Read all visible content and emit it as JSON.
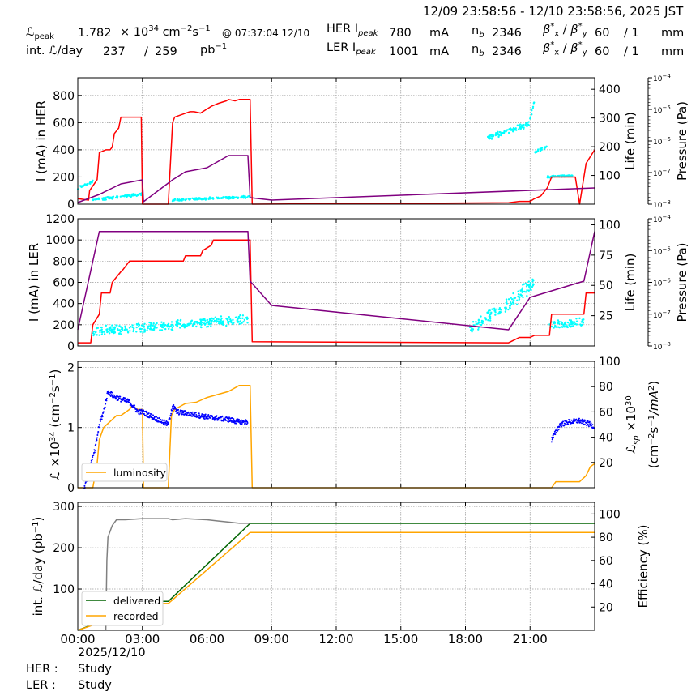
{
  "header": {
    "time_range": "12/09 23:58:56 - 12/10 23:58:56, 2025 JST",
    "lpeak_label": "ℒ",
    "lpeak_sub": "peak",
    "lpeak_value": "1.782",
    "lpeak_times": "× 10",
    "lpeak_exp": "34",
    "lpeak_unit_a": "cm",
    "lpeak_unit_e1": "−2",
    "lpeak_unit_b": "s",
    "lpeak_unit_e2": "−1",
    "lpeak_at": "@ 07:37:04 12/10",
    "intl_label": "int. ℒ/day",
    "intl_rec": "237",
    "intl_slash": "/",
    "intl_del": "259",
    "intl_unit": "pb",
    "intl_unit_exp": "−1",
    "her": {
      "label": "HER I",
      "sub": "peak",
      "value": "780",
      "unit": "mA",
      "nb_label": "n",
      "nb_sub": "b",
      "nb": "2346",
      "beta_label": "β",
      "beta_x": "x",
      "beta_y": "y",
      "beta_star": "*",
      "beta_x_val": "60",
      "beta_y_val": "/ 1",
      "beta_unit": "mm"
    },
    "ler": {
      "label": "LER I",
      "sub": "peak",
      "value": "1001",
      "unit": "mA",
      "nb_label": "n",
      "nb_sub": "b",
      "nb": "2346",
      "beta_label": "β",
      "beta_x": "x",
      "beta_y": "y",
      "beta_star": "*",
      "beta_x_val": "60",
      "beta_y_val": "/ 1",
      "beta_unit": "mm"
    }
  },
  "footer": {
    "date": "2025/12/10",
    "her_label": "HER :",
    "her_mode": "Study",
    "ler_label": "LER :",
    "ler_mode": "Study"
  },
  "colors": {
    "current": "#ff0000",
    "life": "#00ffff",
    "pressure": "#800080",
    "lumi": "#ffa500",
    "lsp": "#0000ff",
    "delivered": "#006400",
    "recorded": "#ffa500",
    "efficiency": "#808080"
  },
  "chart_data": [
    {
      "type": "line",
      "ylabel": "I (mA) in HER",
      "ylim": [
        0,
        930
      ],
      "yticks": [
        0,
        200,
        400,
        600,
        800
      ],
      "y2label": "Life (min)",
      "y2lim": [
        0,
        440
      ],
      "y2ticks": [
        100,
        200,
        300,
        400
      ],
      "y3label": "Pressure (Pa)",
      "y3scale": "log",
      "y3ticks": [
        "10",
        "10",
        "10",
        "10",
        "10"
      ],
      "y3ticks_exp": [
        "−4",
        "−5",
        "−6",
        "−7",
        "−8"
      ],
      "xlim": [
        0,
        24
      ],
      "series": [
        {
          "role": "current",
          "x": [
            0,
            0.5,
            0.55,
            0.9,
            1.0,
            1.3,
            1.4,
            1.5,
            1.6,
            1.7,
            1.9,
            2.0,
            2.3,
            2.4,
            2.95,
            3.0,
            3.05,
            4.2,
            4.4,
            4.5,
            5.2,
            5.4,
            5.7,
            6.0,
            6.2,
            6.5,
            6.9,
            7.0,
            7.3,
            7.5,
            7.9,
            8.0,
            8.1,
            20.0,
            20.5,
            21.0,
            21.2,
            21.5,
            21.8,
            22.0,
            22.3,
            23.1,
            23.3,
            23.6,
            24.0
          ],
          "y": [
            40,
            30,
            100,
            180,
            380,
            400,
            400,
            400,
            420,
            520,
            560,
            640,
            640,
            640,
            640,
            0,
            0,
            0,
            600,
            640,
            680,
            680,
            670,
            700,
            720,
            740,
            760,
            770,
            760,
            770,
            770,
            770,
            0,
            10,
            20,
            20,
            40,
            60,
            120,
            200,
            200,
            200,
            0,
            300,
            400
          ]
        },
        {
          "role": "pressure",
          "x": [
            0,
            1.0,
            2.0,
            3.0,
            3.05,
            4.4,
            5.0,
            6.0,
            7.0,
            7.9,
            8.0,
            9.0,
            24.0
          ],
          "y": [
            2,
            12,
            25,
            30,
            3,
            30,
            40,
            45,
            60,
            60,
            8,
            5,
            20
          ]
        }
      ],
      "life_clusters": [
        {
          "x": [
            0,
            0.7
          ],
          "y": [
            55,
            80
          ]
        },
        {
          "x": [
            0.7,
            3.0
          ],
          "y": [
            15,
            35
          ]
        },
        {
          "x": [
            4.4,
            8.0
          ],
          "y": [
            15,
            25
          ]
        },
        {
          "x": [
            19.0,
            21.0
          ],
          "y": [
            230,
            280
          ]
        },
        {
          "x": [
            21.0,
            21.2
          ],
          "y": [
            300,
            360
          ]
        },
        {
          "x": [
            21.2,
            21.8
          ],
          "y": [
            180,
            200
          ]
        },
        {
          "x": [
            21.8,
            23.0
          ],
          "y": [
            95,
            100
          ]
        }
      ]
    },
    {
      "type": "line",
      "ylabel": "I (mA) in LER",
      "ylim": [
        0,
        1200
      ],
      "yticks": [
        0,
        200,
        400,
        600,
        800,
        1000,
        1200
      ],
      "y2label": "Life (min)",
      "y2lim": [
        0,
        105
      ],
      "y2ticks": [
        25,
        50,
        75,
        100
      ],
      "y3label": "Pressure (Pa)",
      "y3scale": "log",
      "y3ticks": [
        "10",
        "10",
        "10",
        "10",
        "10"
      ],
      "y3ticks_exp": [
        "−4",
        "−5",
        "−6",
        "−7",
        "−8"
      ],
      "xlim": [
        0,
        24
      ],
      "series": [
        {
          "role": "current",
          "x": [
            0,
            0.6,
            0.7,
            1.0,
            1.1,
            1.5,
            1.6,
            2.0,
            2.1,
            2.4,
            2.5,
            3.0,
            4.0,
            4.9,
            5.0,
            5.7,
            5.8,
            6.2,
            6.3,
            7.9,
            8.0,
            8.1,
            20.0,
            20.5,
            21.0,
            21.2,
            21.9,
            22.0,
            23.5,
            23.6,
            24.0
          ],
          "y": [
            30,
            30,
            200,
            300,
            500,
            500,
            600,
            700,
            720,
            800,
            800,
            800,
            800,
            800,
            850,
            850,
            900,
            950,
            1000,
            1000,
            1000,
            40,
            30,
            80,
            80,
            100,
            100,
            300,
            300,
            500,
            500
          ]
        },
        {
          "role": "pressure",
          "x": [
            0,
            1.0,
            2.0,
            3.0,
            4.0,
            5.0,
            6.0,
            7.0,
            7.9,
            8.0,
            9.0,
            20.0,
            21.0,
            23.5,
            24.0
          ],
          "y": [
            20,
            160,
            180,
            180,
            190,
            200,
            210,
            220,
            220,
            80,
            50,
            20,
            60,
            80,
            200
          ]
        }
      ],
      "life_clusters": [
        {
          "x": [
            0.7,
            7.9
          ],
          "y": [
            12,
            22
          ]
        },
        {
          "x": [
            18.2,
            19.4
          ],
          "y": [
            12,
            30
          ]
        },
        {
          "x": [
            19.4,
            21.2
          ],
          "y": [
            25,
            52
          ]
        },
        {
          "x": [
            21.9,
            23.5
          ],
          "y": [
            17,
            20
          ]
        }
      ]
    },
    {
      "type": "line",
      "ylabel_a": "ℒ ×10",
      "ylabel_exp": "34",
      "ylabel_b": " (cm",
      "ylabel_e2": "−2",
      "ylabel_c": "s",
      "ylabel_e1": "−1",
      "ylabel_d": ")",
      "ylim": [
        0,
        2.1
      ],
      "yticks": [
        0,
        1,
        2
      ],
      "y2label_a": "ℒ",
      "y2label_sub": "sp",
      "y2label_b": " ×10",
      "y2label_exp": "30",
      "y2label2": "(cm",
      "y2label2_e2": "−2",
      "y2label2_b": "s",
      "y2label2_e1": "−1",
      "y2label2_c": "/mA",
      "y2label2_e3": "2",
      "y2label2_d": ")",
      "y2lim": [
        0,
        100
      ],
      "y2ticks": [
        20,
        40,
        60,
        80,
        100
      ],
      "legend": [
        "luminosity"
      ],
      "xlim": [
        0,
        24
      ],
      "series": [
        {
          "role": "lumi",
          "name": "luminosity",
          "x": [
            0,
            0.7,
            0.9,
            1.0,
            1.2,
            1.5,
            1.8,
            2.0,
            2.4,
            2.5,
            2.8,
            3.0,
            3.05,
            4.2,
            4.35,
            4.5,
            5.0,
            5.5,
            6.0,
            6.5,
            7.0,
            7.5,
            7.9,
            8.0,
            8.1,
            22.0,
            22.2,
            23.0,
            23.3,
            23.6,
            23.8,
            24.0
          ],
          "y": [
            0,
            0,
            0.4,
            0.8,
            1.0,
            1.1,
            1.2,
            1.2,
            1.3,
            1.35,
            1.3,
            1.3,
            0,
            0,
            1.2,
            1.3,
            1.4,
            1.42,
            1.5,
            1.55,
            1.6,
            1.7,
            1.7,
            1.7,
            0,
            0,
            0.1,
            0.1,
            0.1,
            0.2,
            0.35,
            0.4
          ]
        },
        {
          "role": "lsp",
          "x": [
            0.3,
            0.8,
            1.0,
            1.2,
            1.4,
            1.7,
            2.0,
            2.4,
            2.8,
            3.0,
            4.2,
            4.4,
            4.6,
            5.0,
            6.0,
            6.5,
            7.0,
            7.5,
            7.9,
            22.0,
            22.4,
            22.8,
            23.3,
            23.8,
            24.0
          ],
          "y": [
            0,
            30,
            50,
            60,
            76,
            72,
            70,
            68,
            60,
            60,
            50,
            65,
            60,
            59,
            56,
            55,
            54,
            52,
            52,
            38,
            50,
            52,
            53,
            50,
            48
          ]
        }
      ]
    },
    {
      "type": "line",
      "ylabel": "int. ℒ/day (pb",
      "ylabel_exp": "−1",
      "ylabel_tail": ")",
      "ylim": [
        0,
        310
      ],
      "yticks": [
        100,
        200,
        300
      ],
      "y2label": "Efficiency (%)",
      "y2lim": [
        0,
        110
      ],
      "y2ticks": [
        20,
        40,
        60,
        80,
        100
      ],
      "xlabel": "",
      "xticks": [
        "00:00",
        "03:00",
        "06:00",
        "09:00",
        "12:00",
        "15:00",
        "18:00",
        "21:00"
      ],
      "legend": [
        "delivered",
        "recorded"
      ],
      "xlim": [
        0,
        24
      ],
      "series": [
        {
          "role": "delivered",
          "name": "delivered",
          "x": [
            0,
            1.0,
            2.0,
            3.0,
            4.2,
            8.0,
            24.0
          ],
          "y": [
            0,
            20,
            50,
            70,
            70,
            259,
            259
          ]
        },
        {
          "role": "recorded",
          "name": "recorded",
          "x": [
            0,
            1.0,
            2.0,
            3.0,
            4.2,
            8.0,
            24.0
          ],
          "y": [
            0,
            18,
            45,
            65,
            65,
            237,
            237
          ]
        },
        {
          "role": "efficiency",
          "x": [
            1.3,
            1.35,
            1.4,
            1.6,
            1.8,
            2.2,
            3.0,
            4.2,
            4.4,
            5.0,
            6.0,
            6.5,
            7.0,
            7.5,
            8.0
          ],
          "y": [
            0,
            60,
            80,
            90,
            95,
            95,
            96,
            96,
            95,
            96,
            95,
            94,
            93,
            92,
            92
          ]
        }
      ]
    }
  ]
}
